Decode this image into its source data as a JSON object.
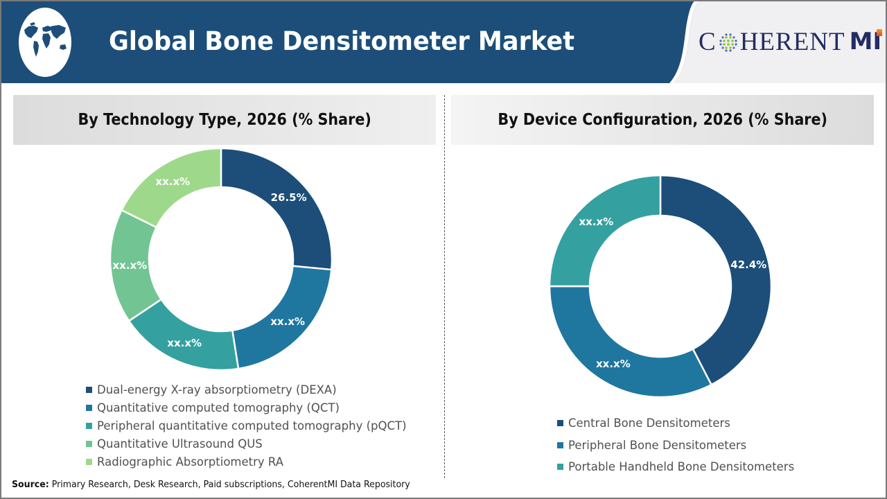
{
  "header": {
    "title": "Global Bone Densitometer Market",
    "brand_prefix": "C",
    "brand_suffix": "HERENT",
    "brand_mi": "MI",
    "colors": {
      "banner": "#1c4e79",
      "logo_panel": "#f0f0f2",
      "brand_text": "#232c63"
    }
  },
  "panels": {
    "left": {
      "title": "By Technology Type, 2026 (% Share)"
    },
    "right": {
      "title": "By Device Configuration, 2026 (% Share)"
    }
  },
  "footer": {
    "source_label": "Source:",
    "source_text": " Primary Research, Desk Research, Paid subscriptions, CoherentMI Data Repository"
  },
  "chart_data": [
    {
      "type": "pie",
      "subtype": "donut",
      "title": "By Technology Type, 2026 (% Share)",
      "categories": [
        "Dual-energy X-ray absorptiometry (DEXA)",
        "Quantitative computed tomography (QCT)",
        "Peripheral quantitative computed tomography (pQCT)",
        "Quantitative Ultrasound QUS",
        "Radiographic Absorptiometry RA"
      ],
      "values": [
        26.5,
        21.0,
        18.1,
        16.7,
        17.7
      ],
      "labels": [
        "26.5%",
        "xx.x%",
        "xx.x%",
        "xx.x%",
        "xx.x%"
      ],
      "colors": [
        "#1c4e79",
        "#1f77a0",
        "#35a0a0",
        "#72c592",
        "#9ed98b"
      ],
      "legend_position": "bottom"
    },
    {
      "type": "pie",
      "subtype": "donut",
      "title": "By Device Configuration, 2026 (% Share)",
      "categories": [
        "Central Bone Densitometers",
        "Peripheral Bone Densitometers",
        "Portable Handheld Bone Densitometers"
      ],
      "values": [
        42.4,
        32.6,
        25.0
      ],
      "labels": [
        "42.4%",
        "xx.x%",
        "xx.x%"
      ],
      "colors": [
        "#1c4e79",
        "#1f77a0",
        "#35a0a0"
      ],
      "legend_position": "bottom"
    }
  ]
}
